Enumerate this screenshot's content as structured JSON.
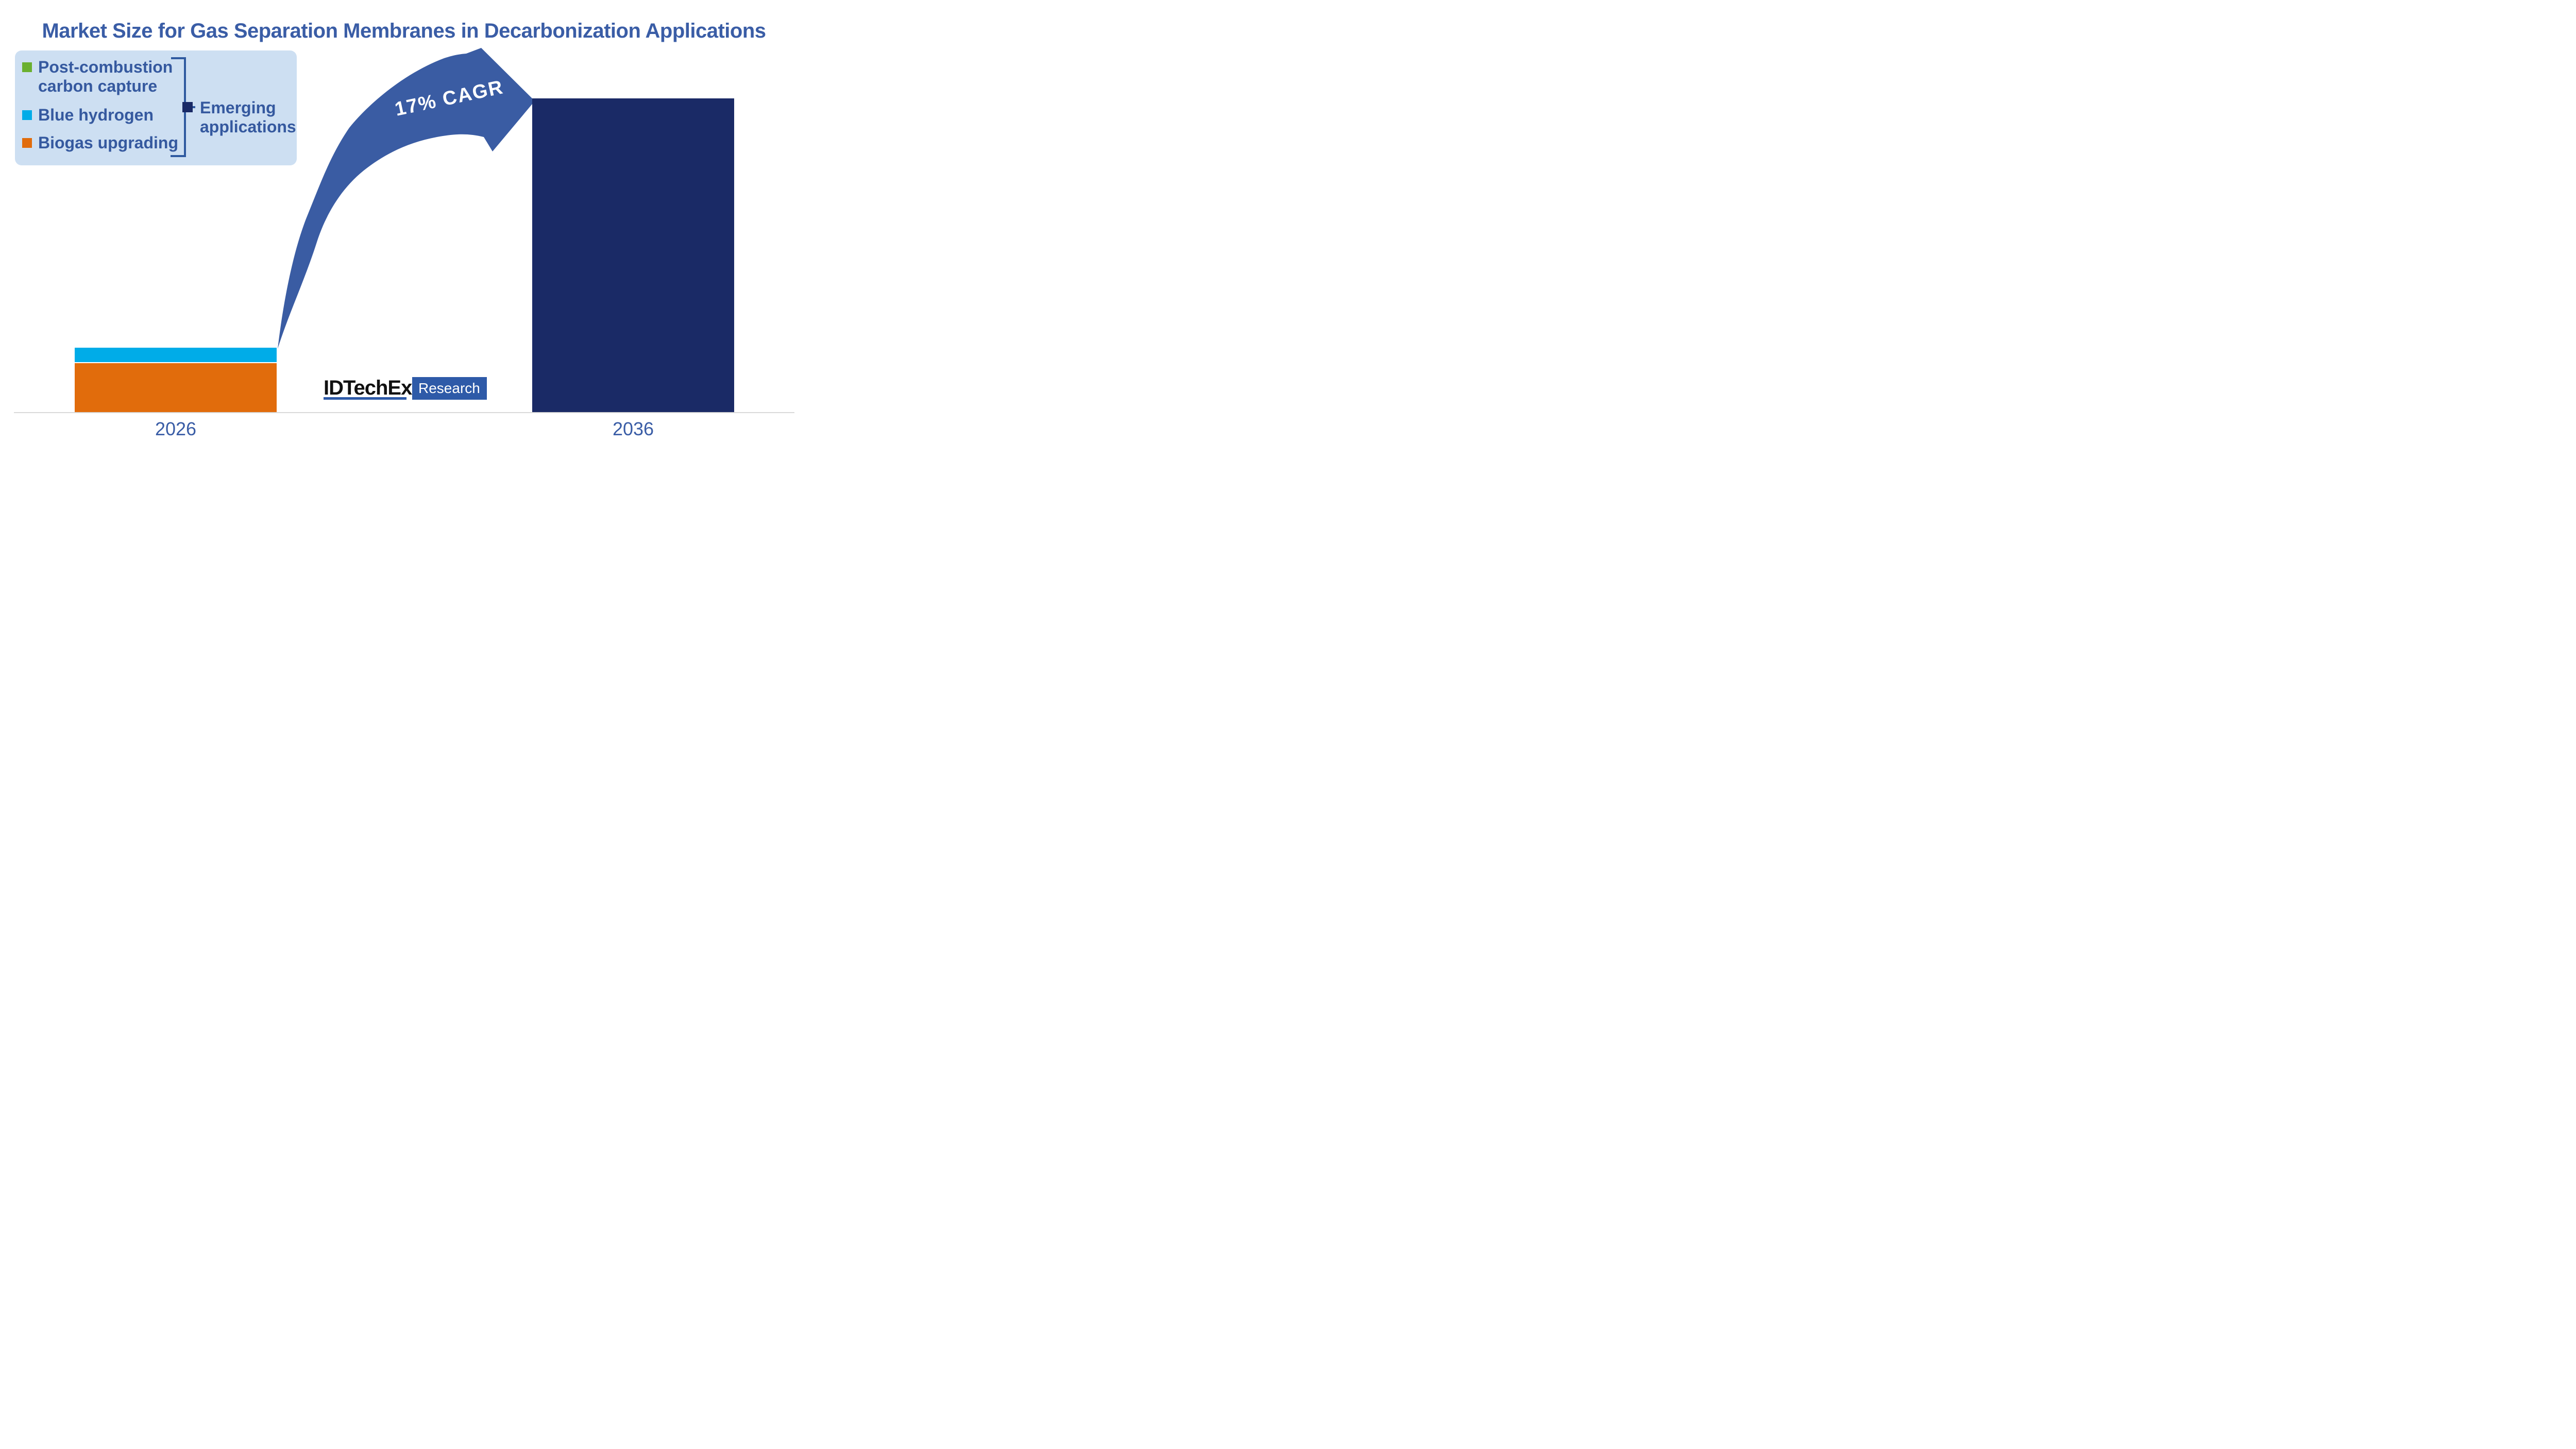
{
  "title": "Market Size for Gas Separation Membranes in Decarbonization Applications",
  "legend": {
    "background": "#cddff2",
    "bracket_color": "#2f5aa0",
    "items": [
      {
        "line1": "Post-combustion",
        "line2": "carbon capture",
        "color": "#6ab02f"
      },
      {
        "line1": "Blue hydrogen",
        "color": "#00ace8"
      },
      {
        "line1": "Biogas upgrading",
        "color": "#e16c0c"
      },
      {
        "line1": "Emerging",
        "line2": "applications",
        "color": "#1a2a66"
      }
    ]
  },
  "annotation": {
    "label": "17% CAGR",
    "arrow_color": "#3a5ca3",
    "text_color": "#ffffff"
  },
  "x_axis": {
    "labels": [
      "2026",
      "2036"
    ],
    "line_color": "#d9d9d9",
    "label_color": "#3a5da6"
  },
  "logo": {
    "brand": "IDTechEx",
    "suffix": "Research",
    "accent": "#2e5aa8"
  },
  "colors": {
    "title_text": "#3a5da6",
    "legend_text": "#35599f"
  },
  "chart_data": {
    "type": "bar",
    "stacked": true,
    "categories": [
      "2026",
      "2036"
    ],
    "series": [
      {
        "name": "Post-combustion carbon capture",
        "color": "#6ab02f",
        "values": [
          0,
          0
        ]
      },
      {
        "name": "Blue hydrogen",
        "color": "#00ace8",
        "values": [
          4.6,
          0
        ]
      },
      {
        "name": "Biogas upgrading",
        "color": "#e16c0c",
        "values": [
          15.7,
          0
        ]
      },
      {
        "name": "Emerging applications",
        "color": "#1a2a66",
        "values": [
          0,
          100
        ]
      }
    ],
    "title": "Market Size for Gas Separation Membranes in Decarbonization Applications",
    "xlabel": "",
    "ylabel": "",
    "y_axis_shown": false,
    "units": "relative market size (2036 total = 100); no numeric axis shown in figure",
    "growth_note": "2036 total is ~4.8x the 2026 total, consistent with 17% CAGR over 10 years",
    "annotations": [
      "17% CAGR curved arrow from top of 2026 stack to top of 2036 bar"
    ],
    "legend_position": "top-left",
    "grid": false
  }
}
